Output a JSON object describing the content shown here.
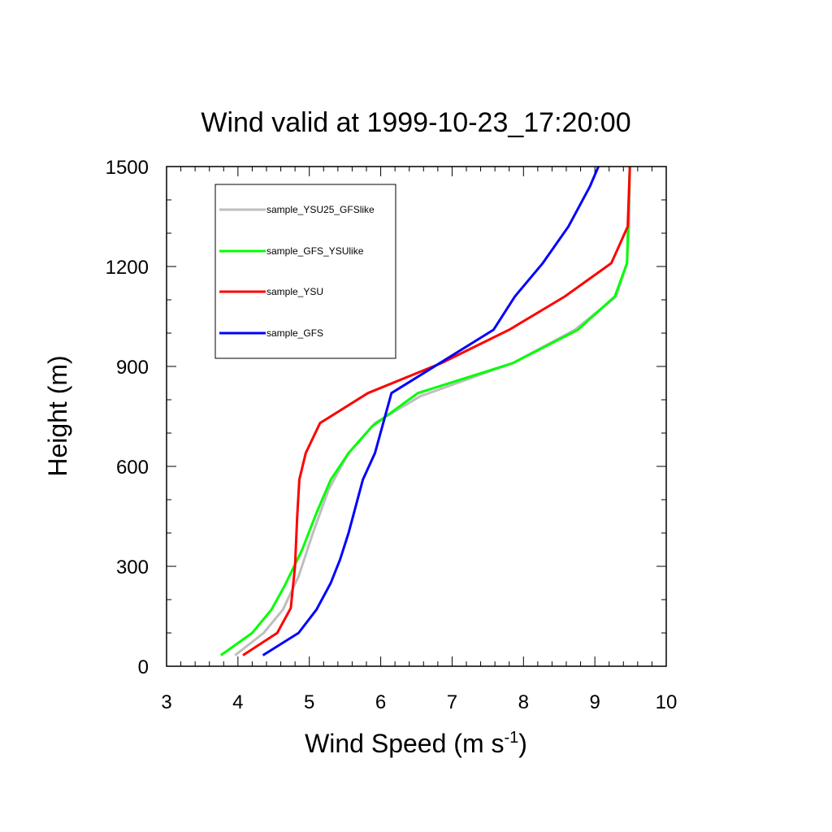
{
  "chart_data": {
    "type": "line",
    "title": "Wind valid at 1999-10-23_17:20:00",
    "xlabel_main": "Wind Speed (m s",
    "xlabel_sup": "-1",
    "xlabel_end": ")",
    "ylabel": "Height (m)",
    "xlim": [
      3,
      10
    ],
    "ylim": [
      0,
      1500
    ],
    "x_ticks": [
      "3",
      "4",
      "5",
      "6",
      "7",
      "8",
      "9",
      "10"
    ],
    "y_ticks": [
      "0",
      "300",
      "600",
      "900",
      "1200",
      "1500"
    ],
    "legend_position": "top-left",
    "series": [
      {
        "name": "sample_YSU25_GFSlike",
        "color": "#bebebe",
        "x": [
          3.96,
          4.36,
          4.63,
          4.85,
          5.05,
          5.27,
          5.55,
          5.92,
          6.55,
          7.85,
          8.72,
          9.3,
          9.45,
          9.48,
          9.49
        ],
        "y": [
          33,
          100,
          170,
          270,
          400,
          530,
          640,
          730,
          810,
          910,
          1010,
          1110,
          1210,
          1320,
          1500
        ]
      },
      {
        "name": "sample_GFS_YSUlike",
        "color": "#00ff00",
        "x": [
          3.76,
          4.2,
          4.47,
          4.65,
          4.9,
          5.1,
          5.3,
          5.55,
          5.88,
          6.52,
          7.85,
          8.76,
          9.28,
          9.45,
          9.49
        ],
        "y": [
          33,
          100,
          170,
          240,
          350,
          460,
          560,
          640,
          720,
          820,
          910,
          1010,
          1110,
          1210,
          1500
        ]
      },
      {
        "name": "sample_YSU",
        "color": "#ff0000",
        "x": [
          4.07,
          4.55,
          4.74,
          4.8,
          4.83,
          4.86,
          4.95,
          5.15,
          5.82,
          6.85,
          7.8,
          8.58,
          9.23,
          9.46,
          9.49
        ],
        "y": [
          33,
          100,
          175,
          300,
          450,
          560,
          640,
          730,
          820,
          910,
          1010,
          1110,
          1210,
          1320,
          1500
        ]
      },
      {
        "name": "sample_GFS",
        "color": "#0000ff",
        "x": [
          4.35,
          4.85,
          5.1,
          5.3,
          5.43,
          5.55,
          5.65,
          5.75,
          5.92,
          6.15,
          7.58,
          7.88,
          8.27,
          8.63,
          8.93,
          9.05
        ],
        "y": [
          33,
          100,
          170,
          250,
          320,
          400,
          480,
          560,
          640,
          820,
          1010,
          1110,
          1210,
          1320,
          1440,
          1500
        ]
      }
    ]
  }
}
